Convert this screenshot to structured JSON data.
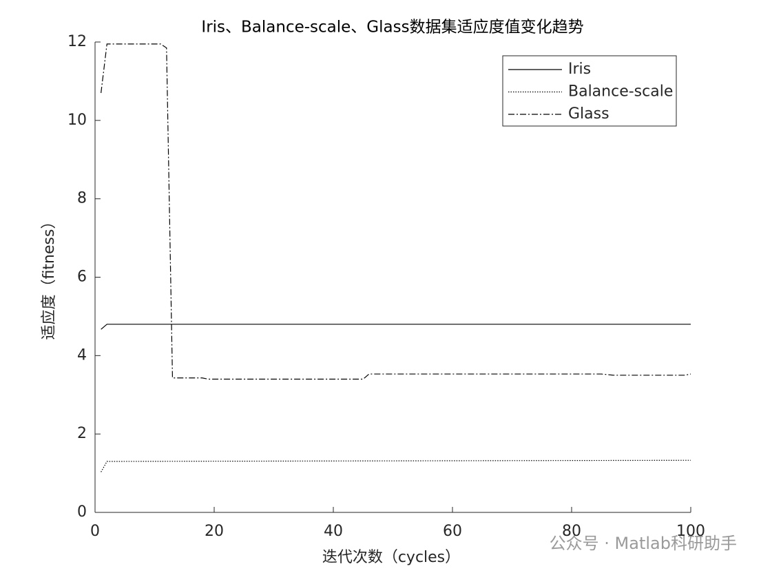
{
  "chart_data": {
    "type": "line",
    "title": "Iris、Balance-scale、Glass数据集适应度值变化趋势",
    "x_label": "迭代次数（cycles）",
    "y_label": "适应度（fitness）",
    "watermark": "公众号 · Matlab科研助手",
    "xlim": [
      0,
      100
    ],
    "xticks": [
      0,
      20,
      40,
      60,
      80,
      100
    ],
    "ylim": [
      0,
      12
    ],
    "yticks": [
      0,
      2,
      4,
      6,
      8,
      10,
      12
    ],
    "legend": "top-right",
    "series": [
      {
        "name": "Iris",
        "color": "#000000",
        "style": "solid",
        "x": [
          1,
          2,
          100
        ],
        "values": [
          4.67,
          4.8,
          4.8
        ]
      },
      {
        "name": "Balance-scale",
        "color": "#000000",
        "style": "dotted",
        "x": [
          1,
          2,
          100
        ],
        "values": [
          1.03,
          1.3,
          1.33
        ]
      },
      {
        "name": "Glass",
        "color": "#000000",
        "style": "dashdot",
        "x": [
          1,
          2,
          11,
          12,
          13,
          18,
          19,
          45,
          46,
          85,
          87,
          99,
          100
        ],
        "values": [
          10.7,
          11.95,
          11.95,
          11.85,
          3.43,
          3.43,
          3.4,
          3.4,
          3.53,
          3.53,
          3.5,
          3.5,
          3.53
        ]
      }
    ]
  }
}
